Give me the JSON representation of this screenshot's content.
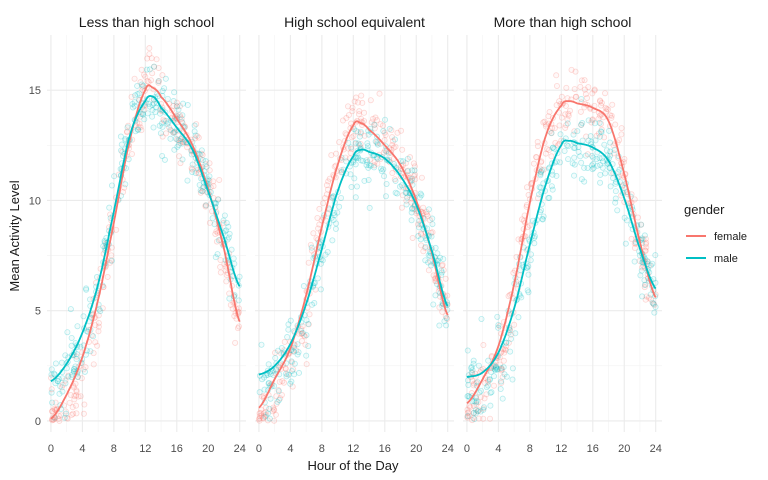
{
  "chart_data": {
    "type": "scatter",
    "xlabel": "Hour of the Day",
    "ylabel": "Mean Activity Level",
    "xlim": [
      -0.5,
      24.8
    ],
    "ylim": [
      -0.5,
      17.5
    ],
    "x_ticks": [
      0,
      4,
      8,
      12,
      16,
      20,
      24
    ],
    "y_ticks": [
      0,
      5,
      10,
      15
    ],
    "grid": true,
    "legend": {
      "title": "gender",
      "position": "right",
      "entries": [
        {
          "label": "female",
          "color": "#F8766D"
        },
        {
          "label": "male",
          "color": "#00BFC4"
        }
      ]
    },
    "facets": [
      {
        "title": "Less than high school",
        "series": [
          {
            "name": "female",
            "color": "#F8766D",
            "x": [
              0,
              2,
              4,
              6,
              8,
              10,
              12,
              13,
              14,
              16,
              18,
              20,
              22,
              24
            ],
            "y": [
              0.1,
              1.2,
              2.9,
              5.5,
              9.0,
              12.7,
              15.0,
              15.1,
              14.7,
              13.7,
              12.5,
              10.5,
              7.8,
              4.5
            ]
          },
          {
            "name": "male",
            "color": "#00BFC4",
            "x": [
              0,
              2,
              4,
              6,
              8,
              10,
              12,
              13,
              14,
              16,
              18,
              20,
              22,
              24
            ],
            "y": [
              1.8,
              2.6,
              4.0,
              6.2,
              9.5,
              12.9,
              14.5,
              14.7,
              14.2,
              13.3,
              12.3,
              10.4,
              8.3,
              6.1
            ]
          }
        ]
      },
      {
        "title": "High school equivalent",
        "series": [
          {
            "name": "female",
            "color": "#F8766D",
            "x": [
              0,
              2,
              4,
              6,
              8,
              10,
              12,
              13,
              14,
              16,
              18,
              20,
              22,
              24
            ],
            "y": [
              0.6,
              1.9,
              3.3,
              5.7,
              8.8,
              11.6,
              13.4,
              13.5,
              13.2,
              12.5,
              11.6,
              10.0,
              7.6,
              4.8
            ]
          },
          {
            "name": "male",
            "color": "#00BFC4",
            "x": [
              0,
              2,
              4,
              6,
              8,
              10,
              12,
              13,
              14,
              16,
              18,
              20,
              22,
              24
            ],
            "y": [
              2.1,
              2.5,
              3.5,
              5.3,
              7.8,
              10.4,
              12.0,
              12.3,
              12.2,
              11.9,
              11.1,
              9.8,
              7.7,
              5.2
            ]
          }
        ]
      },
      {
        "title": "More than high school",
        "series": [
          {
            "name": "female",
            "color": "#F8766D",
            "x": [
              0,
              2,
              4,
              6,
              8,
              10,
              12,
              13,
              14,
              16,
              18,
              20,
              22,
              24
            ],
            "y": [
              0.8,
              1.9,
              3.4,
              6.2,
              9.9,
              12.9,
              14.3,
              14.5,
              14.4,
              14.2,
              13.6,
              11.2,
              8.1,
              5.6
            ]
          },
          {
            "name": "male",
            "color": "#00BFC4",
            "x": [
              0,
              2,
              4,
              6,
              8,
              10,
              12,
              13,
              14,
              16,
              18,
              20,
              22,
              24
            ],
            "y": [
              2.0,
              2.2,
              3.1,
              5.1,
              8.0,
              10.7,
              12.5,
              12.7,
              12.6,
              12.4,
              11.8,
              10.1,
              7.8,
              6.0
            ]
          }
        ]
      }
    ]
  }
}
